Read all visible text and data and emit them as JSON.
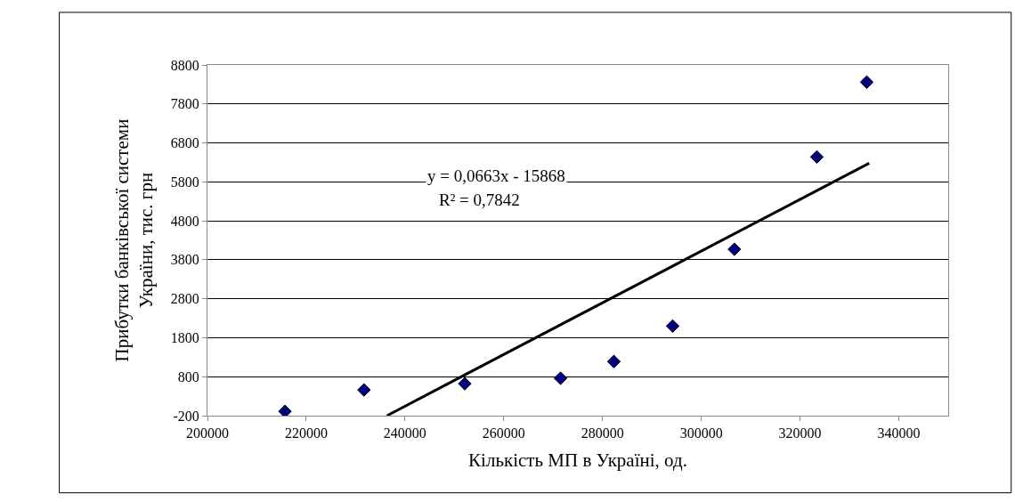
{
  "chart_data": {
    "type": "scatter",
    "xlabel": "Кількість МП в Україні, од.",
    "ylabel": "Прибутки банківської системи\nУкраїни, тис. грн",
    "series": [
      {
        "color": "#000080",
        "marker": "diamond",
        "x": [
          215700,
          231700,
          252100,
          271500,
          282300,
          294200,
          306700,
          323400,
          333500
        ],
        "values": [
          -90,
          460,
          620,
          760,
          1190,
          2100,
          4070,
          6440,
          8360
        ]
      },
      {
        "type": "line",
        "color": "#000000",
        "marker": "none",
        "x": [
          236350,
          334000
        ],
        "values": [
          -200,
          6280
        ]
      }
    ],
    "annotations": [
      "y = 0,0663x - 15868",
      "R² = 0,7842"
    ],
    "xlim": [
      200000,
      350000
    ],
    "xticks": [
      200000,
      220000,
      240000,
      260000,
      280000,
      300000,
      320000,
      340000
    ],
    "ylim": [
      -200,
      8800
    ],
    "yticks": [
      -200,
      800,
      1800,
      2800,
      3800,
      4800,
      5800,
      6800,
      7800,
      8800
    ],
    "grid": "y"
  }
}
